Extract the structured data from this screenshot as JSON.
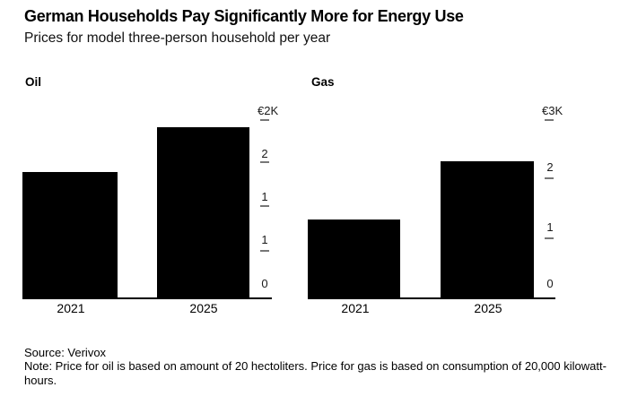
{
  "page": {
    "title": "German Households Pay Significantly More for Energy Use",
    "subtitle": "Prices for model three-person household per year"
  },
  "chart_data": [
    {
      "type": "bar",
      "title": "Oil",
      "categories": [
        "2021",
        "2025"
      ],
      "values": [
        1425,
        1930
      ],
      "ylim": [
        0,
        2000
      ],
      "y_tick_values_top_to_bottom": [
        2000,
        1500,
        1000,
        500,
        0
      ],
      "y_tick_labels_top_to_bottom": [
        "€2K",
        "2",
        "1",
        "1",
        "0"
      ],
      "bar_color": "#000000",
      "grid": "off",
      "legend": "none"
    },
    {
      "type": "bar",
      "title": "Gas",
      "categories": [
        "2021",
        "2025"
      ],
      "values": [
        1330,
        2320
      ],
      "ylim": [
        0,
        3000
      ],
      "y_tick_values_top_to_bottom": [
        3000,
        2000,
        1000,
        0
      ],
      "y_tick_labels_top_to_bottom": [
        "€3K",
        "2",
        "1",
        "0"
      ],
      "bar_color": "#000000",
      "grid": "off",
      "legend": "none"
    }
  ],
  "footer": {
    "source": "Source: Verivox",
    "note": "Note: Price for oil is based on amount of 20 hectoliters. Price for gas is based on consumption of 20,000 kilowatt-hours."
  },
  "colors": {
    "background": "#ffffff",
    "bar": "#000000",
    "text": "#000000",
    "tick_dash": "#777777"
  }
}
